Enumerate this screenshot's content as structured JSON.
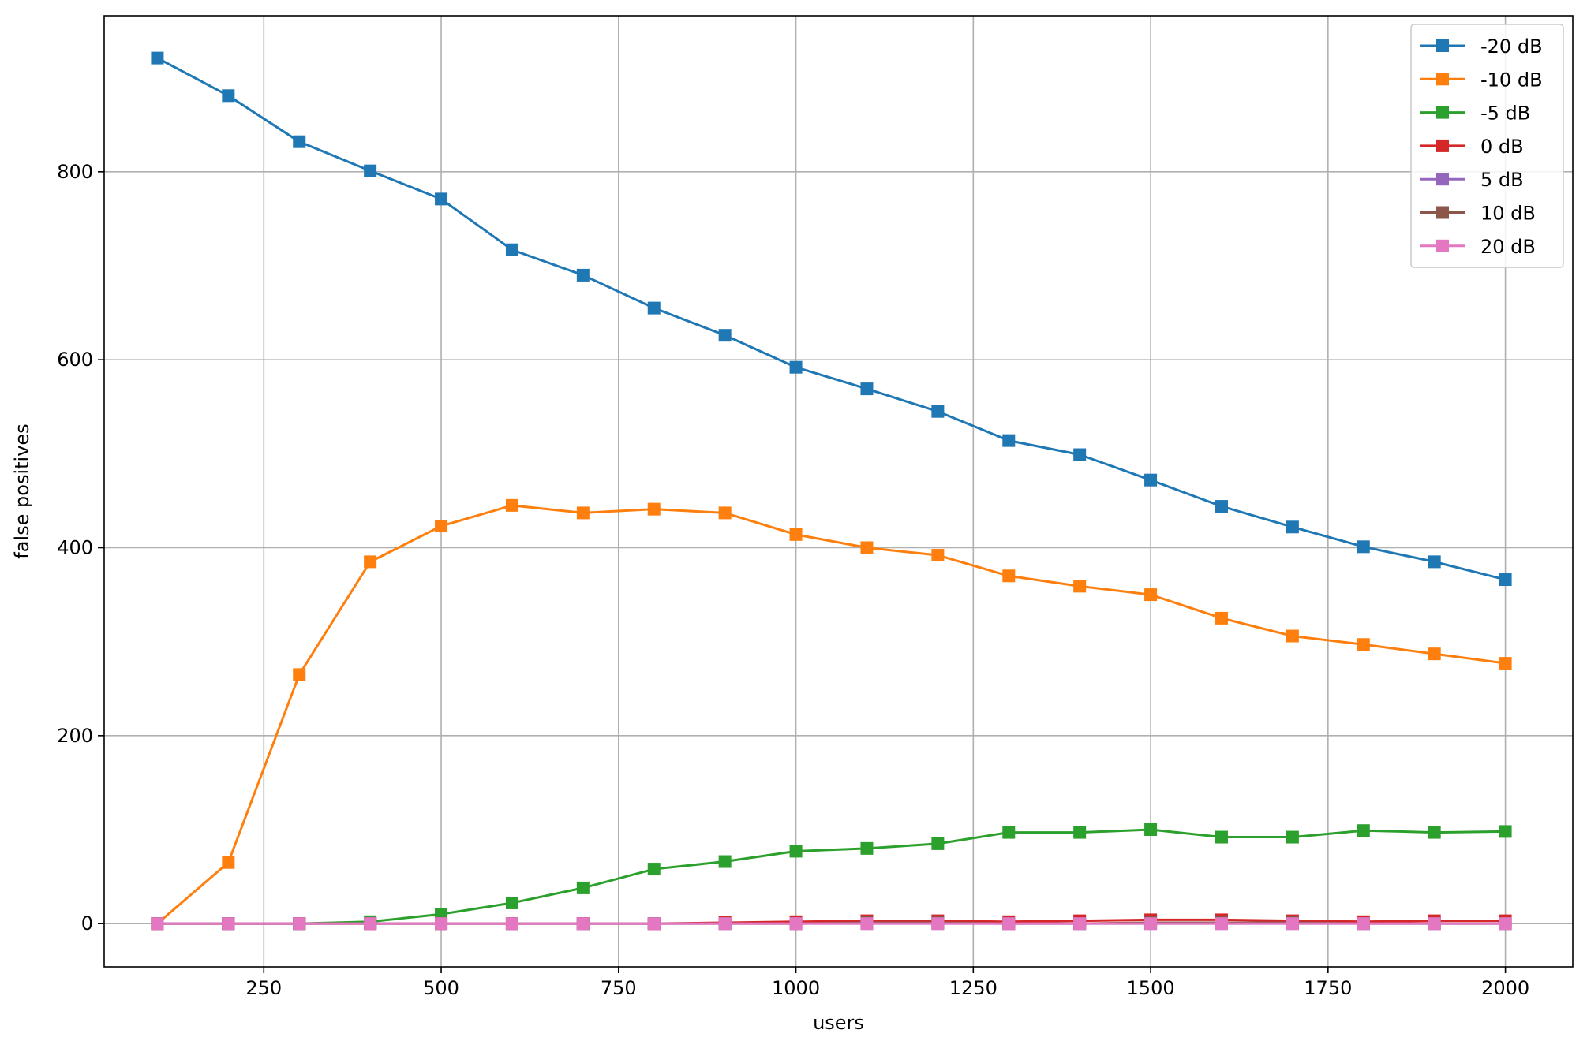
{
  "chart_data": {
    "type": "line",
    "title": "",
    "xlabel": "users",
    "ylabel": "false positives",
    "xlim": [
      25,
      2095
    ],
    "ylim": [
      -46,
      966
    ],
    "xticks": [
      250,
      500,
      750,
      1000,
      1250,
      1500,
      1750,
      2000
    ],
    "yticks": [
      0,
      200,
      400,
      600,
      800
    ],
    "grid": true,
    "legend_position": "top-right",
    "marker": "square",
    "x": [
      100,
      200,
      300,
      400,
      500,
      600,
      700,
      800,
      900,
      1000,
      1100,
      1200,
      1300,
      1400,
      1500,
      1600,
      1700,
      1800,
      1900,
      2000
    ],
    "series": [
      {
        "name": "-20 dB",
        "color": "#1f77b4",
        "values": [
          921,
          881,
          832,
          801,
          771,
          717,
          690,
          655,
          626,
          592,
          569,
          545,
          514,
          499,
          472,
          444,
          422,
          401,
          385,
          366
        ]
      },
      {
        "name": "-10 dB",
        "color": "#ff7f0e",
        "values": [
          0,
          65,
          265,
          385,
          423,
          445,
          437,
          441,
          437,
          414,
          400,
          392,
          370,
          359,
          350,
          325,
          306,
          297,
          287,
          277
        ]
      },
      {
        "name": "-5 dB",
        "color": "#2ca02c",
        "values": [
          0,
          0,
          0,
          2,
          10,
          22,
          38,
          58,
          66,
          77,
          80,
          85,
          97,
          97,
          100,
          92,
          92,
          99,
          97,
          98
        ]
      },
      {
        "name": "0 dB",
        "color": "#d62728",
        "values": [
          0,
          0,
          0,
          0,
          0,
          0,
          0,
          0,
          1,
          2,
          3,
          3,
          2,
          3,
          4,
          4,
          3,
          2,
          3,
          3
        ]
      },
      {
        "name": "5 dB",
        "color": "#9467bd",
        "values": [
          0,
          0,
          0,
          0,
          0,
          0,
          0,
          0,
          0,
          0,
          0,
          0,
          0,
          0,
          0,
          0,
          0,
          0,
          0,
          0
        ]
      },
      {
        "name": "10 dB",
        "color": "#8c564b",
        "values": [
          0,
          0,
          0,
          0,
          0,
          0,
          0,
          0,
          0,
          0,
          1,
          1,
          0,
          0,
          1,
          1,
          1,
          0,
          0,
          0
        ]
      },
      {
        "name": "20 dB",
        "color": "#e377c2",
        "values": [
          0,
          0,
          0,
          0,
          0,
          0,
          0,
          0,
          0,
          0,
          0,
          0,
          0,
          0,
          0,
          0,
          0,
          0,
          0,
          0
        ]
      }
    ]
  }
}
